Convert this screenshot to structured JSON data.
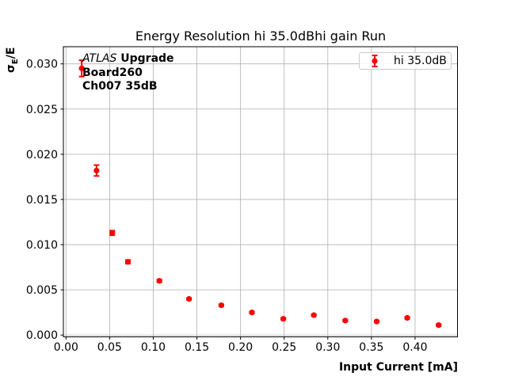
{
  "figure": {
    "background": "#ffffff",
    "title": "Energy Resolution hi 35.0dBhi gain Run"
  },
  "annotation": {
    "experiment": "ATLAS",
    "upgrade": " Upgrade",
    "board": "Board260",
    "channel": "Ch007 35dB"
  },
  "axes_labels": {
    "xlabel": "Input Current [mA]",
    "ylabel_sigma": "σ",
    "ylabel_sub": "E",
    "ylabel_rest": "/E"
  },
  "legend": {
    "entries": [
      {
        "label": "hi 35.0dB",
        "marker": "red-errorbar-point-icon"
      }
    ]
  },
  "chart_data": {
    "type": "scatter",
    "title": "Energy Resolution hi 35.0dBhi gain Run",
    "xlabel": "Input Current [mA]",
    "ylabel": "σ_E/E",
    "grid": true,
    "grid_color": "#b0b0b0",
    "axes_edge_color": "#000000",
    "legend_position": "upper right",
    "xlim": [
      -0.003,
      0.4486
    ],
    "ylim": [
      -0.0002,
      0.0319
    ],
    "x_ticks": {
      "values": [
        0.0,
        0.05,
        0.1,
        0.15,
        0.2,
        0.25,
        0.3,
        0.35,
        0.4
      ],
      "labels": [
        "0.00",
        "0.05",
        "0.10",
        "0.15",
        "0.20",
        "0.25",
        "0.30",
        "0.35",
        "0.40"
      ]
    },
    "y_ticks": {
      "values": [
        0.0,
        0.005,
        0.01,
        0.015,
        0.02,
        0.025,
        0.03
      ],
      "labels": [
        "0.000",
        "0.005",
        "0.010",
        "0.015",
        "0.020",
        "0.025",
        "0.030"
      ]
    },
    "series": [
      {
        "name": "hi 35.0dB",
        "color": "#ff0000",
        "marker": "circle-with-errorbar",
        "x": [
          0.018,
          0.035,
          0.053,
          0.071,
          0.107,
          0.141,
          0.178,
          0.213,
          0.249,
          0.284,
          0.32,
          0.356,
          0.391,
          0.427
        ],
        "y": [
          0.0295,
          0.0182,
          0.0113,
          0.0081,
          0.006,
          0.004,
          0.0033,
          0.0025,
          0.0018,
          0.0022,
          0.0016,
          0.0015,
          0.0019,
          0.0011
        ],
        "yerr": [
          0.0009,
          0.0006,
          0.00025,
          0.0002,
          0.00015,
          0.0001,
          0.0001,
          0.0001,
          0.0001,
          0.0001,
          0.0001,
          0.0001,
          0.0001,
          0.0001
        ]
      }
    ]
  }
}
